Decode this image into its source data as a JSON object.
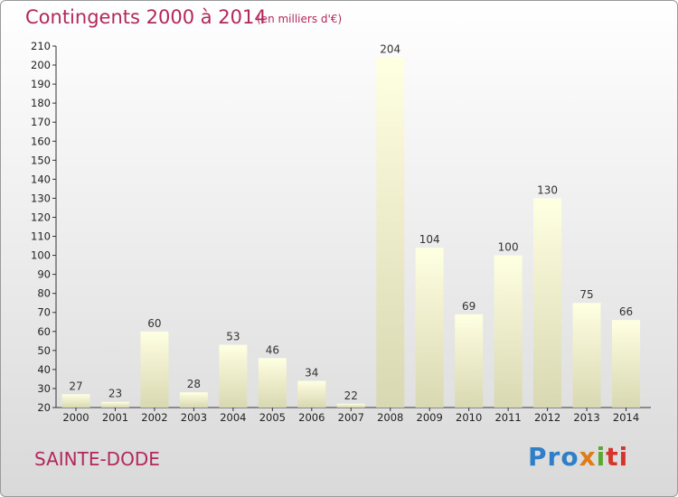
{
  "title": "Contingents 2000 à 2014",
  "subtitle": "(en milliers d'€)",
  "commune": "SAINTE-DODE",
  "logo": {
    "p1": "Pro",
    "p2": "x",
    "p3": "i",
    "p4": "ti"
  },
  "colors": {
    "title": "#b2285a",
    "bar_top": "#ffffe0",
    "bar_bottom": "#d6d6b0"
  },
  "chart_data": {
    "type": "bar",
    "title": "Contingents 2000 à 2014",
    "subtitle": "(en milliers d'€)",
    "categories": [
      "2000",
      "2001",
      "2002",
      "2003",
      "2004",
      "2005",
      "2006",
      "2007",
      "2008",
      "2009",
      "2010",
      "2011",
      "2012",
      "2013",
      "2014"
    ],
    "values": [
      27,
      23,
      60,
      28,
      53,
      46,
      34,
      22,
      204,
      104,
      69,
      100,
      130,
      75,
      66
    ],
    "xlabel": "",
    "ylabel": "",
    "ylim": [
      20,
      210
    ],
    "yticks": [
      20,
      30,
      40,
      50,
      60,
      70,
      80,
      90,
      100,
      110,
      120,
      130,
      140,
      150,
      160,
      170,
      180,
      190,
      200,
      210
    ],
    "grid": false,
    "data_labels": true
  }
}
